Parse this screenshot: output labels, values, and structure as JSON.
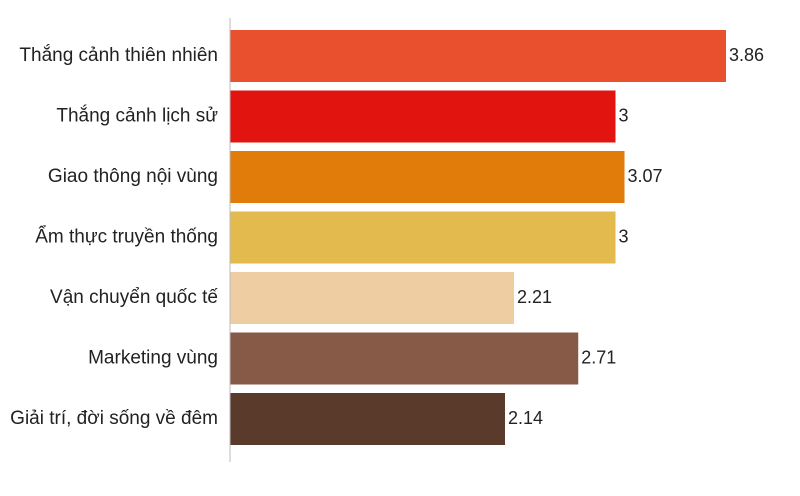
{
  "chart_data": {
    "type": "bar",
    "orientation": "horizontal",
    "title": "",
    "xlabel": "",
    "ylabel": "",
    "xlim": [
      0,
      4.1
    ],
    "grid": false,
    "legend": "none",
    "categories": [
      "Thắng cảnh thiên nhiên",
      "Thắng cảnh lịch sử",
      "Giao thông nội vùng",
      "Ẩm thực truyền thống",
      "Vận chuyển quốc tế",
      "Marketing vùng",
      "Giải trí, đời sống về đêm"
    ],
    "values": [
      3.86,
      3,
      3.07,
      3,
      2.21,
      2.71,
      2.14
    ],
    "value_labels": [
      "3.86",
      "3",
      "3.07",
      "3",
      "2.21",
      "2.71",
      "2.14"
    ],
    "colors": [
      "#e8502e",
      "#e2140f",
      "#e17c0a",
      "#e3ba4e",
      "#edcda1",
      "#875a48",
      "#5a3a2a"
    ]
  }
}
